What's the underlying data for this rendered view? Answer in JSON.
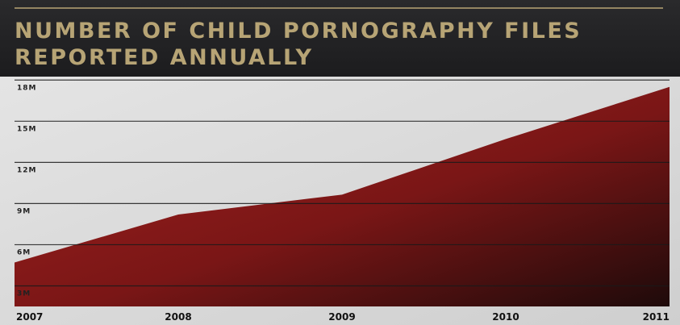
{
  "chart_data": {
    "type": "area",
    "title_lines": [
      "NUMBER OF CHILD PORNOGRAPHY FILES",
      "REPORTED ANNUALLY"
    ],
    "x": [
      2007,
      2008,
      2009,
      2010,
      2011
    ],
    "xticks": [
      2007,
      2008,
      2009,
      2010,
      2011
    ],
    "xlim": [
      2007,
      2011
    ],
    "values": [
      4.7,
      8.2,
      9.65,
      13.7,
      17.5
    ],
    "color": "#9b1d1d",
    "ylim": [
      1.5,
      18.25
    ],
    "yticks": [
      {
        "value": 3,
        "label": "3M"
      },
      {
        "value": 6,
        "label": "6M"
      },
      {
        "value": 9,
        "label": "9M"
      },
      {
        "value": 12,
        "label": "12M"
      },
      {
        "value": 15,
        "label": "15M"
      },
      {
        "value": 18,
        "label": "18M"
      }
    ],
    "grid": true
  }
}
